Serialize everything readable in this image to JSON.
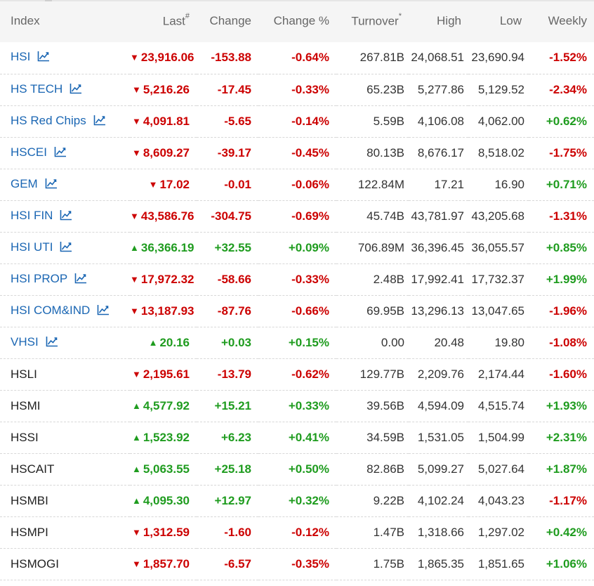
{
  "header": {
    "index": "Index",
    "last": "Last",
    "last_sup": "#",
    "change": "Change",
    "change_pct": "Change %",
    "turnover": "Turnover",
    "turnover_sup": "*",
    "high": "High",
    "low": "Low",
    "weekly": "Weekly"
  },
  "colors": {
    "up": "#1f9c1f",
    "down": "#cc0000",
    "link": "#1a66b3"
  },
  "rows": [
    {
      "name": "HSI",
      "link": true,
      "dir": "down",
      "last": "23,916.06",
      "change": "-153.88",
      "pct": "-0.64%",
      "turnover": "267.81B",
      "high": "24,068.51",
      "low": "23,690.94",
      "weekly": "-1.52%",
      "weekly_dir": "down"
    },
    {
      "name": "HS TECH",
      "link": true,
      "dir": "down",
      "last": "5,216.26",
      "change": "-17.45",
      "pct": "-0.33%",
      "turnover": "65.23B",
      "high": "5,277.86",
      "low": "5,129.52",
      "weekly": "-2.34%",
      "weekly_dir": "down"
    },
    {
      "name": "HS Red Chips",
      "link": true,
      "dir": "down",
      "last": "4,091.81",
      "change": "-5.65",
      "pct": "-0.14%",
      "turnover": "5.59B",
      "high": "4,106.08",
      "low": "4,062.00",
      "weekly": "+0.62%",
      "weekly_dir": "up"
    },
    {
      "name": "HSCEI",
      "link": true,
      "dir": "down",
      "last": "8,609.27",
      "change": "-39.17",
      "pct": "-0.45%",
      "turnover": "80.13B",
      "high": "8,676.17",
      "low": "8,518.02",
      "weekly": "-1.75%",
      "weekly_dir": "down"
    },
    {
      "name": "GEM",
      "link": true,
      "dir": "down",
      "last": "17.02",
      "change": "-0.01",
      "pct": "-0.06%",
      "turnover": "122.84M",
      "high": "17.21",
      "low": "16.90",
      "weekly": "+0.71%",
      "weekly_dir": "up"
    },
    {
      "name": "HSI FIN",
      "link": true,
      "dir": "down",
      "last": "43,586.76",
      "change": "-304.75",
      "pct": "-0.69%",
      "turnover": "45.74B",
      "high": "43,781.97",
      "low": "43,205.68",
      "weekly": "-1.31%",
      "weekly_dir": "down"
    },
    {
      "name": "HSI UTI",
      "link": true,
      "dir": "up",
      "last": "36,366.19",
      "change": "+32.55",
      "pct": "+0.09%",
      "turnover": "706.89M",
      "high": "36,396.45",
      "low": "36,055.57",
      "weekly": "+0.85%",
      "weekly_dir": "up"
    },
    {
      "name": "HSI PROP",
      "link": true,
      "dir": "down",
      "last": "17,972.32",
      "change": "-58.66",
      "pct": "-0.33%",
      "turnover": "2.48B",
      "high": "17,992.41",
      "low": "17,732.37",
      "weekly": "+1.99%",
      "weekly_dir": "up"
    },
    {
      "name": "HSI COM&IND",
      "link": true,
      "dir": "down",
      "last": "13,187.93",
      "change": "-87.76",
      "pct": "-0.66%",
      "turnover": "69.95B",
      "high": "13,296.13",
      "low": "13,047.65",
      "weekly": "-1.96%",
      "weekly_dir": "down"
    },
    {
      "name": "VHSI",
      "link": true,
      "dir": "up",
      "last": "20.16",
      "change": "+0.03",
      "pct": "+0.15%",
      "turnover": "0.00",
      "high": "20.48",
      "low": "19.80",
      "weekly": "-1.08%",
      "weekly_dir": "down"
    },
    {
      "name": "HSLI",
      "link": false,
      "dir": "down",
      "last": "2,195.61",
      "change": "-13.79",
      "pct": "-0.62%",
      "turnover": "129.77B",
      "high": "2,209.76",
      "low": "2,174.44",
      "weekly": "-1.60%",
      "weekly_dir": "down"
    },
    {
      "name": "HSMI",
      "link": false,
      "dir": "up",
      "last": "4,577.92",
      "change": "+15.21",
      "pct": "+0.33%",
      "turnover": "39.56B",
      "high": "4,594.09",
      "low": "4,515.74",
      "weekly": "+1.93%",
      "weekly_dir": "up"
    },
    {
      "name": "HSSI",
      "link": false,
      "dir": "up",
      "last": "1,523.92",
      "change": "+6.23",
      "pct": "+0.41%",
      "turnover": "34.59B",
      "high": "1,531.05",
      "low": "1,504.99",
      "weekly": "+2.31%",
      "weekly_dir": "up"
    },
    {
      "name": "HSCAIT",
      "link": false,
      "dir": "up",
      "last": "5,063.55",
      "change": "+25.18",
      "pct": "+0.50%",
      "turnover": "82.86B",
      "high": "5,099.27",
      "low": "5,027.64",
      "weekly": "+1.87%",
      "weekly_dir": "up"
    },
    {
      "name": "HSMBI",
      "link": false,
      "dir": "up",
      "last": "4,095.30",
      "change": "+12.97",
      "pct": "+0.32%",
      "turnover": "9.22B",
      "high": "4,102.24",
      "low": "4,043.23",
      "weekly": "-1.17%",
      "weekly_dir": "down"
    },
    {
      "name": "HSMPI",
      "link": false,
      "dir": "down",
      "last": "1,312.59",
      "change": "-1.60",
      "pct": "-0.12%",
      "turnover": "1.47B",
      "high": "1,318.66",
      "low": "1,297.02",
      "weekly": "+0.42%",
      "weekly_dir": "up"
    },
    {
      "name": "HSMOGI",
      "link": false,
      "dir": "down",
      "last": "1,857.70",
      "change": "-6.57",
      "pct": "-0.35%",
      "turnover": "1.75B",
      "high": "1,865.35",
      "low": "1,851.65",
      "weekly": "+1.06%",
      "weekly_dir": "up"
    }
  ]
}
